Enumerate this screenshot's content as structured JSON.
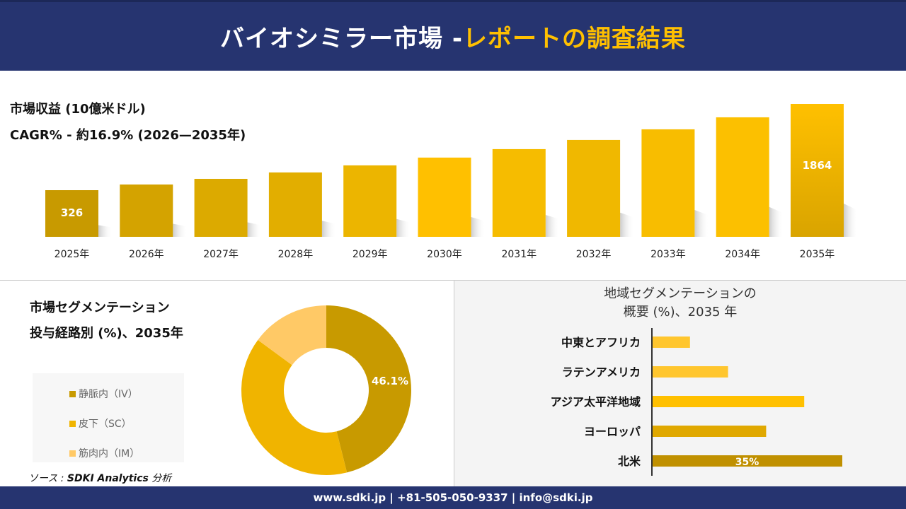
{
  "header": {
    "title_main": "バイオシミラー市場 -",
    "title_highlight": "レポートの調査結果"
  },
  "revenue": {
    "label": "市場収益 (10億米ドル)",
    "cagr": "CAGR% - 約16.9% (2026—2035年)"
  },
  "footer": {
    "contact": "www.sdki.jp | +81-505-050-9337 | info@sdki.jp"
  },
  "source": {
    "prefix": "ソース : ",
    "name": "SDKI Analytics",
    "suffix": " 分析"
  },
  "colors": {
    "navy": "#263470",
    "accent": "#ffc000"
  },
  "chart_data": [
    {
      "type": "bar",
      "categories": [
        "2025年",
        "2026年",
        "2027年",
        "2028年",
        "2029年",
        "2030年",
        "2031年",
        "2032年",
        "2033年",
        "2034年",
        "2035年"
      ],
      "values": [
        326,
        427,
        528,
        642,
        768,
        907,
        1058,
        1222,
        1411,
        1625,
        1864
      ],
      "data_labels": {
        "0": "326",
        "10": "1864"
      },
      "title": "市場収益 (10億米ドル)",
      "grid": false
    },
    {
      "type": "pie",
      "title": "市場セグメンテーション 投与経路別 (%)、2035年",
      "title_line1": "市場セグメンテーション",
      "title_line2": "投与経路別 (%)、2035年",
      "categories": [
        "静脈内（IV）",
        "皮下（SC）",
        "筋肉内（IM）"
      ],
      "values": [
        46.1,
        39,
        14.9
      ],
      "data_labels": {
        "0": "46.1%"
      },
      "colors": [
        "#c89a00",
        "#f0b400",
        "#ffc966"
      ],
      "legend": "left"
    },
    {
      "type": "bar",
      "orientation": "horizontal",
      "title_line1": "地域セグメンテーションの",
      "title_line2": "概要 (%)、2035 年",
      "categories": [
        "中東とアフリカ",
        "ラテンアメリカ",
        "アジア太平洋地域",
        "ヨーロッパ",
        "北米"
      ],
      "values": [
        7,
        14,
        28,
        21,
        35
      ],
      "data_labels": {
        "4": "35%"
      },
      "colors": [
        "#ffc62e",
        "#ffc62e",
        "#ffc000",
        "#e0a800",
        "#c09000"
      ]
    }
  ]
}
